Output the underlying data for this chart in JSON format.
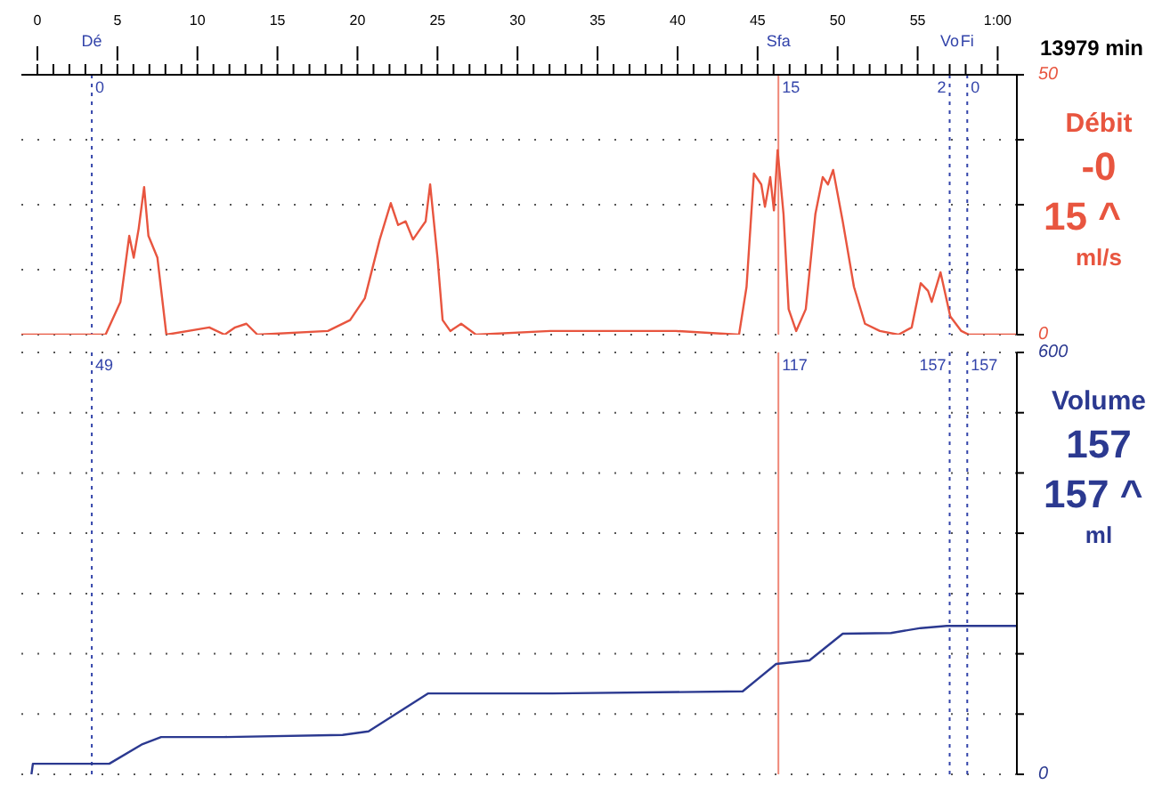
{
  "chart_data": [
    {
      "type": "line",
      "title": "13979 min",
      "annotations": [
        "Débit",
        "-0",
        "15 ^",
        "ml/s",
        {
          "text": "0",
          "x": 3.4,
          "y": 50
        },
        {
          "text": "15",
          "x": 46.3,
          "y": 50
        },
        {
          "text": "2",
          "x": 57,
          "y": 50
        },
        {
          "text": "0",
          "x": 58.1,
          "y": 50
        }
      ],
      "x": [
        -1,
        4.26,
        5.19,
        5.74,
        6.02,
        6.33,
        6.67,
        6.94,
        7.5,
        8.06,
        10.74,
        11.7,
        12.36,
        13.06,
        13.75,
        18.15,
        19.54,
        20.46,
        21.39,
        22.08,
        22.54,
        23.01,
        23.47,
        23.94,
        24.26,
        24.54,
        25,
        25.32,
        25.8,
        26.48,
        27.4,
        32.04,
        39.9,
        43.84,
        44.31,
        44.77,
        45.23,
        45.46,
        45.79,
        46.02,
        46.25,
        46.62,
        46.94,
        47.41,
        48.01,
        48.61,
        49.07,
        49.4,
        49.72,
        50.32,
        51.02,
        51.71,
        52.64,
        53.8,
        54.63,
        55.19,
        55.65,
        55.88,
        56.43,
        57.04,
        57.73,
        58.2,
        61.2
      ],
      "series": [
        {
          "color": "#e8553f",
          "values": [
            0,
            0,
            6.3,
            19,
            14.8,
            20.4,
            28.4,
            19,
            14.8,
            0,
            1.4,
            0,
            1.4,
            2.1,
            0,
            0.7,
            2.8,
            7,
            18.3,
            25.3,
            21.1,
            21.8,
            18.3,
            20.4,
            21.8,
            28.9,
            14.8,
            2.8,
            0.7,
            2.1,
            0,
            0.7,
            0.7,
            0,
            9.2,
            31,
            28.9,
            24.6,
            30.3,
            23.9,
            35.5,
            23.2,
            4.9,
            0.7,
            4.9,
            23.2,
            30.3,
            28.9,
            31.7,
            21.8,
            9.2,
            2.1,
            0.7,
            0,
            1.4,
            9.9,
            8.4,
            6.3,
            12,
            3.5,
            0.7,
            0,
            0
          ]
        }
      ],
      "xlim": [
        -1,
        61.2
      ],
      "xticks": [
        0,
        {
          "value": 1,
          "label": null
        },
        {
          "value": 2,
          "label": null
        },
        {
          "value": 3,
          "label": null
        },
        {
          "value": 4,
          "label": null
        },
        5,
        {
          "value": 6,
          "label": null
        },
        {
          "value": 7,
          "label": null
        },
        {
          "value": 8,
          "label": null
        },
        {
          "value": 9,
          "label": null
        },
        10,
        {
          "value": 11,
          "label": null
        },
        {
          "value": 12,
          "label": null
        },
        {
          "value": 13,
          "label": null
        },
        {
          "value": 14,
          "label": null
        },
        15,
        {
          "value": 16,
          "label": null
        },
        {
          "value": 17,
          "label": null
        },
        {
          "value": 18,
          "label": null
        },
        {
          "value": 19,
          "label": null
        },
        20,
        {
          "value": 21,
          "label": null
        },
        {
          "value": 22,
          "label": null
        },
        {
          "value": 23,
          "label": null
        },
        {
          "value": 24,
          "label": null
        },
        25,
        {
          "value": 26,
          "label": null
        },
        {
          "value": 27,
          "label": null
        },
        {
          "value": 28,
          "label": null
        },
        {
          "value": 29,
          "label": null
        },
        30,
        {
          "value": 31,
          "label": null
        },
        {
          "value": 32,
          "label": null
        },
        {
          "value": 33,
          "label": null
        },
        {
          "value": 34,
          "label": null
        },
        35,
        {
          "value": 36,
          "label": null
        },
        {
          "value": 37,
          "label": null
        },
        {
          "value": 38,
          "label": null
        },
        {
          "value": 39,
          "label": null
        },
        40,
        {
          "value": 41,
          "label": null
        },
        {
          "value": 42,
          "label": null
        },
        {
          "value": 43,
          "label": null
        },
        {
          "value": 44,
          "label": null
        },
        45,
        {
          "value": 46,
          "label": null
        },
        {
          "value": 47,
          "label": null
        },
        {
          "value": 48,
          "label": null
        },
        {
          "value": 49,
          "label": null
        },
        50,
        {
          "value": 51,
          "label": null
        },
        {
          "value": 52,
          "label": null
        },
        {
          "value": 53,
          "label": null
        },
        {
          "value": 54,
          "label": null
        },
        55,
        {
          "value": 56,
          "label": null
        },
        {
          "value": 57,
          "label": null
        },
        {
          "value": 58,
          "label": null
        },
        {
          "value": 59,
          "label": null
        },
        {
          "value": 60,
          "label": "1:00"
        }
      ],
      "ylim": [
        0,
        50
      ],
      "yticks": [
        0,
        {
          "value": 12.5,
          "label": null
        },
        {
          "value": 25,
          "label": null
        },
        {
          "value": 37.5,
          "label": null
        },
        50
      ],
      "grid": "y",
      "marker": "none",
      "ref_lines": [
        {
          "axis": "x",
          "value": 3.4,
          "label": "Dé",
          "color": "#3344aa",
          "line_style": "dotted"
        },
        {
          "axis": "x",
          "value": 46.3,
          "label": "Sfa",
          "color": "#f08878",
          "line_style": "solid"
        },
        {
          "axis": "x",
          "value": 57,
          "label": "Vo",
          "color": "#3344aa",
          "line_style": "dotted"
        },
        {
          "axis": "x",
          "value": 58.1,
          "label": "Fi",
          "color": "#3344aa",
          "line_style": "dotted"
        }
      ]
    },
    {
      "type": "line",
      "annotations": [
        "Volume",
        "157",
        "157 ^",
        "ml",
        {
          "text": "49",
          "x": 3.4,
          "y": 600
        },
        {
          "text": "117",
          "x": 46.3,
          "y": 600
        },
        {
          "text": "157",
          "x": 57,
          "y": 600
        },
        {
          "text": "157",
          "x": 58.1,
          "y": 600
        }
      ],
      "x": [
        -0.37,
        -0.28,
        4.49,
        6.57,
        7.73,
        11.67,
        19.07,
        20.69,
        24.4,
        32.2,
        44.07,
        46.16,
        48.24,
        50.32,
        53.33,
        55.19,
        56.81,
        61.2
      ],
      "series": [
        {
          "color": "#2b3990",
          "values": [
            0,
            15,
            15,
            43,
            53,
            53,
            56,
            61,
            115,
            115,
            118,
            157,
            162,
            200,
            201,
            208,
            211,
            211
          ]
        }
      ],
      "xlim": [
        -1,
        61.2
      ],
      "ylim": [
        0,
        600
      ],
      "yticks": [
        0,
        {
          "value": 85.7,
          "label": null
        },
        {
          "value": 171.4,
          "label": null
        },
        {
          "value": 257.1,
          "label": null
        },
        {
          "value": 342.9,
          "label": null
        },
        {
          "value": 428.6,
          "label": null
        },
        {
          "value": 514.3,
          "label": null
        },
        600
      ],
      "tick_labels": "y",
      "grid": "y",
      "marker": "none",
      "ref_lines": [
        {
          "axis": "x",
          "value": 3.4,
          "color": "#3344aa",
          "line_style": "dotted"
        },
        {
          "axis": "x",
          "value": 46.3,
          "color": "#f08878",
          "line_style": "solid"
        },
        {
          "axis": "x",
          "value": 57,
          "color": "#3344aa",
          "line_style": "dotted"
        },
        {
          "axis": "x",
          "value": 58.1,
          "color": "#3344aa",
          "line_style": "dotted"
        }
      ]
    }
  ]
}
